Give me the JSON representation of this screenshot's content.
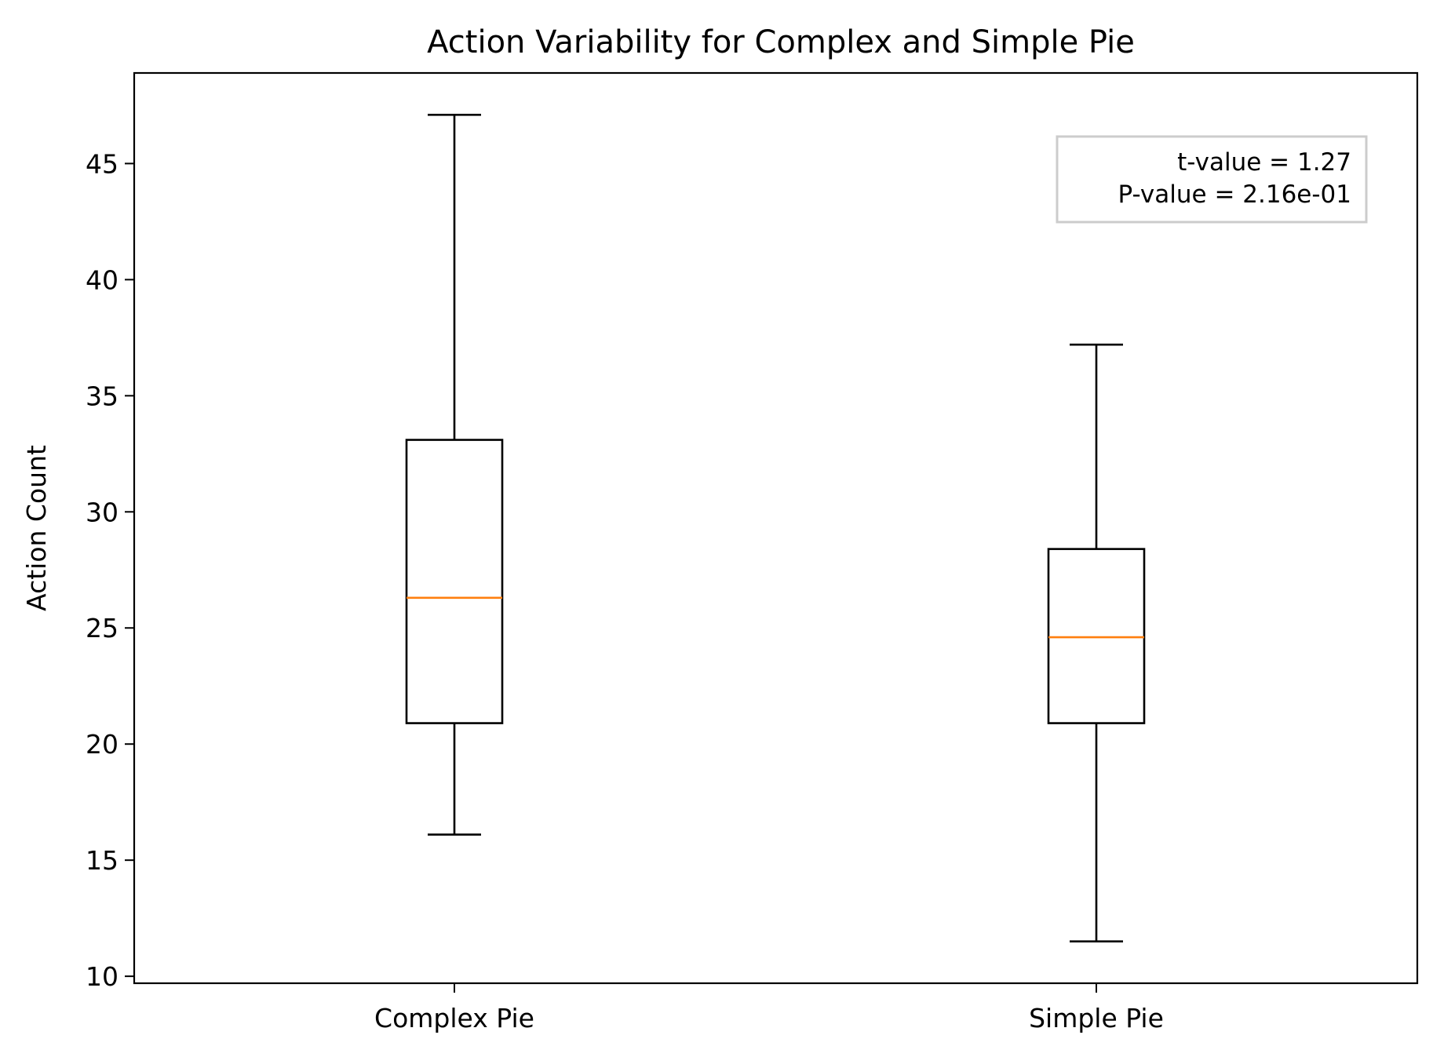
{
  "chart_data": {
    "type": "box",
    "title": "Action Variability for Complex and Simple Pie",
    "xlabel": "",
    "ylabel": "Action Count",
    "categories": [
      "Complex Pie",
      "Simple Pie"
    ],
    "boxes": [
      {
        "category": "Complex Pie",
        "whisker_low": 16.1,
        "q1": 20.9,
        "median": 26.3,
        "q3": 33.1,
        "whisker_high": 47.1
      },
      {
        "category": "Simple Pie",
        "whisker_low": 11.5,
        "q1": 20.9,
        "median": 24.6,
        "q3": 28.4,
        "whisker_high": 37.2
      }
    ],
    "ylim": [
      9.7,
      48.9
    ],
    "yticks": [
      10,
      15,
      20,
      25,
      30,
      35,
      40,
      45
    ],
    "grid": false,
    "annotation": {
      "lines": [
        "t-value = 1.27",
        "P-value = 2.16e-01"
      ],
      "placement": "top-right"
    },
    "colors": {
      "box": "#000000",
      "median": "#ff7f0e",
      "annotation_border": "#cccccc"
    }
  }
}
